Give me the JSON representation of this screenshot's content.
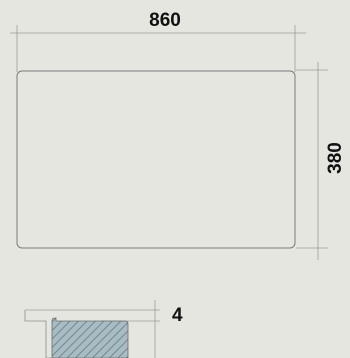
{
  "diagram": {
    "width_label": "860",
    "height_label": "380",
    "thickness_label": "4"
  },
  "colors": {
    "background": "#e6e6e1",
    "line": "#8a8a8a",
    "hatch_fill": "#9ab0b8",
    "text": "#111111"
  }
}
